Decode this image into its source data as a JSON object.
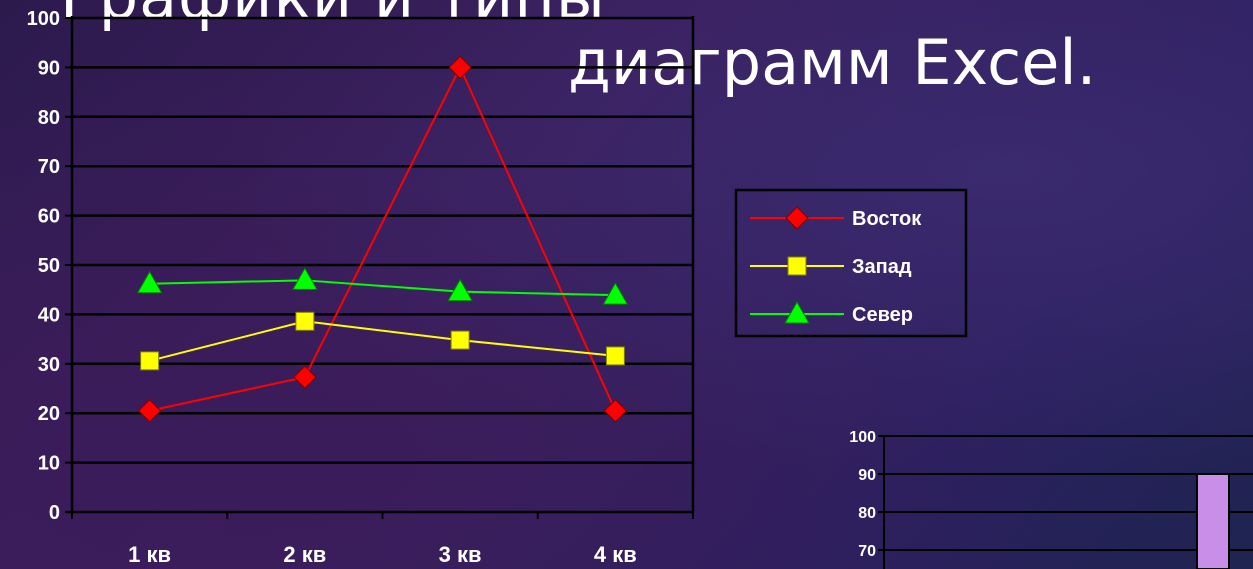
{
  "slide": {
    "title_top": "Графики и типы",
    "title_main": "диаграмм Excel."
  },
  "colors": {
    "background": "#2c1a4d",
    "text": "#ffffff",
    "gridline": "#000000",
    "bar_fill": "#c98fe8"
  },
  "chart_data": [
    {
      "type": "line",
      "categories": [
        "1 кв",
        "2 кв",
        "3 кв",
        "4 кв"
      ],
      "ylim": [
        0,
        100
      ],
      "yticks": [
        0,
        10,
        20,
        30,
        40,
        50,
        60,
        70,
        80,
        90,
        100
      ],
      "grid": true,
      "legend": "right",
      "series": [
        {
          "name": "Восток",
          "values": [
            20.5,
            27.3,
            90,
            20.5
          ],
          "color": "#ff0000",
          "marker": "diamond"
        },
        {
          "name": "Запад",
          "values": [
            30.6,
            38.6,
            34.8,
            31.6
          ],
          "color": "#ffff00",
          "marker": "square"
        },
        {
          "name": "Север",
          "values": [
            46.2,
            46.9,
            44.6,
            43.9
          ],
          "color": "#00ff00",
          "marker": "triangle"
        }
      ]
    },
    {
      "type": "bar",
      "ylim": [
        0,
        100
      ],
      "yticks": [
        70,
        80,
        90,
        100
      ],
      "grid": true,
      "values": [
        90
      ],
      "color": "#c98fe8"
    }
  ]
}
